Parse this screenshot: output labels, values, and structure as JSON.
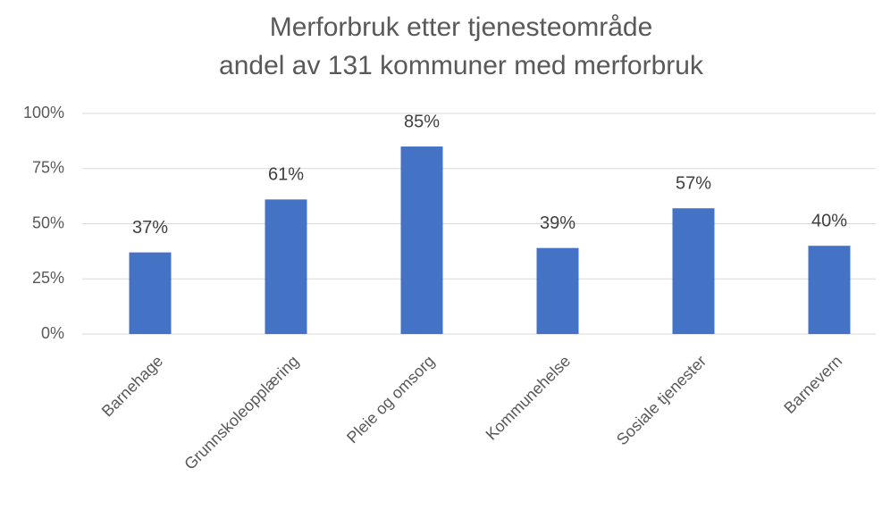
{
  "chart_data": {
    "type": "bar",
    "title": "Merforbruk etter tjenesteområde",
    "subtitle": "andel av 131 kommuner med merforbruk",
    "categories": [
      "Barnehage",
      "Grunnskoleopplæring",
      "Pleie og omsorg",
      "Kommunehelse",
      "Sosiale tjenester",
      "Barnevern"
    ],
    "values": [
      37,
      61,
      85,
      39,
      57,
      40
    ],
    "value_labels": [
      "37%",
      "61%",
      "85%",
      "39%",
      "57%",
      "40%"
    ],
    "color": "#4472c4",
    "ylim": [
      0,
      100
    ],
    "yticks": [
      {
        "value": 0,
        "label": "0%"
      },
      {
        "value": 25,
        "label": "25%"
      },
      {
        "value": 50,
        "label": "50%"
      },
      {
        "value": 75,
        "label": "75%"
      },
      {
        "value": 100,
        "label": "100%"
      }
    ],
    "grid": true
  }
}
